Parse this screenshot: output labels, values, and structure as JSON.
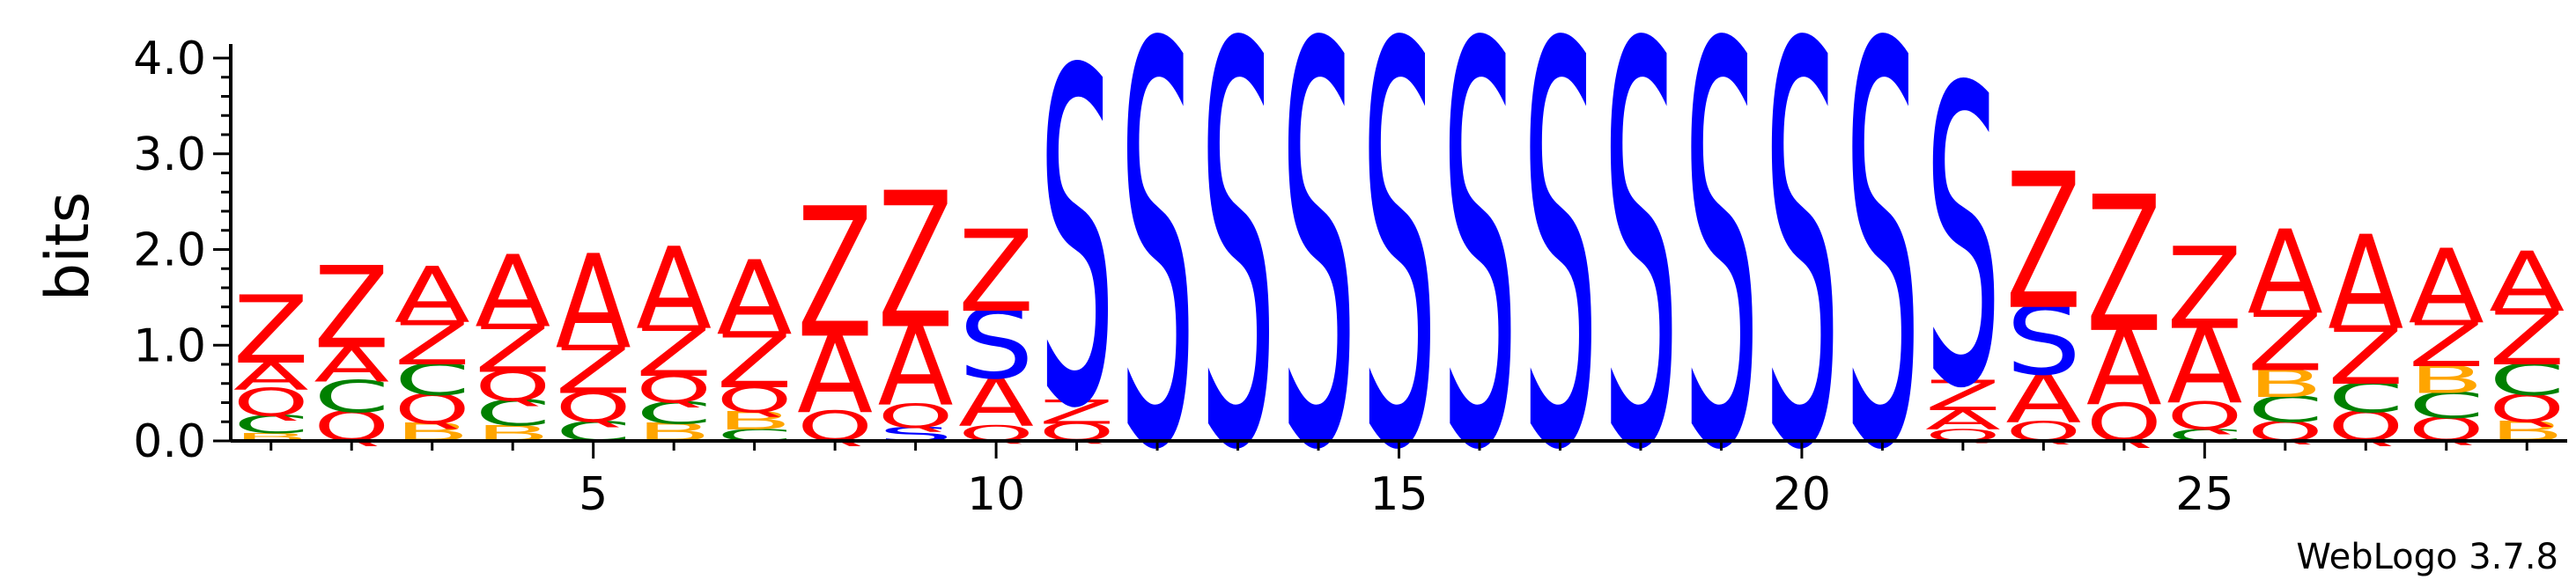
{
  "chart_data": {
    "type": "sequence-logo",
    "ylabel": "bits",
    "ylim": [
      0,
      4.0
    ],
    "yticks": [
      "0.0",
      "1.0",
      "2.0",
      "3.0",
      "4.0"
    ],
    "xlim": [
      1,
      29
    ],
    "xticks": [
      "5",
      "10",
      "15",
      "20",
      "25"
    ],
    "credit": "WebLogo 3.7.8",
    "colors": {
      "A": "#ff0000",
      "Z": "#ff0000",
      "Q": "#ff0000",
      "S": "#0000ff",
      "C": "#008000",
      "B": "#ffa500"
    },
    "positions": [
      {
        "pos": 1,
        "stack": [
          [
            "B",
            0.08
          ],
          [
            "C",
            0.18
          ],
          [
            "Q",
            0.28
          ],
          [
            "A",
            0.28
          ],
          [
            "Z",
            0.68
          ]
        ]
      },
      {
        "pos": 2,
        "stack": [
          [
            "Q",
            0.3
          ],
          [
            "C",
            0.32
          ],
          [
            "A",
            0.36
          ],
          [
            "Z",
            0.82
          ]
        ]
      },
      {
        "pos": 3,
        "stack": [
          [
            "B",
            0.18
          ],
          [
            "Q",
            0.3
          ],
          [
            "C",
            0.32
          ],
          [
            "Z",
            0.44
          ],
          [
            "A",
            0.56
          ]
        ]
      },
      {
        "pos": 4,
        "stack": [
          [
            "B",
            0.16
          ],
          [
            "C",
            0.26
          ],
          [
            "Q",
            0.3
          ],
          [
            "Z",
            0.48
          ],
          [
            "A",
            0.72
          ]
        ]
      },
      {
        "pos": 5,
        "stack": [
          [
            "C",
            0.2
          ],
          [
            "Q",
            0.3
          ],
          [
            "Z",
            0.48
          ],
          [
            "A",
            0.94
          ]
        ]
      },
      {
        "pos": 6,
        "stack": [
          [
            "B",
            0.18
          ],
          [
            "C",
            0.22
          ],
          [
            "Q",
            0.28
          ],
          [
            "Z",
            0.5
          ],
          [
            "A",
            0.82
          ]
        ]
      },
      {
        "pos": 7,
        "stack": [
          [
            "C",
            0.12
          ],
          [
            "B",
            0.18
          ],
          [
            "Q",
            0.26
          ],
          [
            "Z",
            0.56
          ],
          [
            "A",
            0.74
          ]
        ]
      },
      {
        "pos": 8,
        "stack": [
          [
            "Q",
            0.3
          ],
          [
            "A",
            0.8
          ],
          [
            "Z",
            1.3
          ]
        ]
      },
      {
        "pos": 9,
        "stack": [
          [
            "S",
            0.14
          ],
          [
            "Q",
            0.24
          ],
          [
            "A",
            0.82
          ],
          [
            "Z",
            1.36
          ]
        ]
      },
      {
        "pos": 10,
        "stack": [
          [
            "Q",
            0.16
          ],
          [
            "A",
            0.5
          ],
          [
            "S",
            0.7
          ],
          [
            "Z",
            0.82
          ]
        ]
      },
      {
        "pos": 11,
        "stack": [
          [
            "Q",
            0.18
          ],
          [
            "Z",
            0.24
          ],
          [
            "S",
            3.34
          ]
        ]
      },
      {
        "pos": 12,
        "stack": [
          [
            "S",
            4.0
          ]
        ]
      },
      {
        "pos": 13,
        "stack": [
          [
            "S",
            4.0
          ]
        ]
      },
      {
        "pos": 14,
        "stack": [
          [
            "S",
            4.0
          ]
        ]
      },
      {
        "pos": 15,
        "stack": [
          [
            "S",
            4.0
          ]
        ]
      },
      {
        "pos": 16,
        "stack": [
          [
            "S",
            4.0
          ]
        ]
      },
      {
        "pos": 17,
        "stack": [
          [
            "S",
            4.0
          ]
        ]
      },
      {
        "pos": 18,
        "stack": [
          [
            "S",
            4.0
          ]
        ]
      },
      {
        "pos": 19,
        "stack": [
          [
            "S",
            4.0
          ]
        ]
      },
      {
        "pos": 20,
        "stack": [
          [
            "S",
            4.0
          ]
        ]
      },
      {
        "pos": 21,
        "stack": [
          [
            "S",
            4.0
          ]
        ]
      },
      {
        "pos": 22,
        "stack": [
          [
            "Q",
            0.12
          ],
          [
            "A",
            0.2
          ],
          [
            "Z",
            0.3
          ],
          [
            "S",
            2.98
          ]
        ]
      },
      {
        "pos": 23,
        "stack": [
          [
            "Q",
            0.2
          ],
          [
            "A",
            0.5
          ],
          [
            "S",
            0.7
          ],
          [
            "Z",
            1.36
          ]
        ]
      },
      {
        "pos": 24,
        "stack": [
          [
            "Q",
            0.38
          ],
          [
            "A",
            0.78
          ],
          [
            "Z",
            1.36
          ]
        ]
      },
      {
        "pos": 25,
        "stack": [
          [
            "C",
            0.12
          ],
          [
            "Q",
            0.28
          ],
          [
            "A",
            0.78
          ],
          [
            "Z",
            0.82
          ]
        ]
      },
      {
        "pos": 26,
        "stack": [
          [
            "Q",
            0.2
          ],
          [
            "C",
            0.26
          ],
          [
            "B",
            0.28
          ],
          [
            "Z",
            0.6
          ],
          [
            "A",
            0.84
          ]
        ]
      },
      {
        "pos": 27,
        "stack": [
          [
            "Q",
            0.3
          ],
          [
            "C",
            0.3
          ],
          [
            "Z",
            0.58
          ],
          [
            "A",
            0.94
          ]
        ]
      },
      {
        "pos": 28,
        "stack": [
          [
            "Q",
            0.24
          ],
          [
            "C",
            0.26
          ],
          [
            "B",
            0.28
          ],
          [
            "Z",
            0.46
          ],
          [
            "A",
            0.74
          ]
        ]
      },
      {
        "pos": 29,
        "stack": [
          [
            "B",
            0.2
          ],
          [
            "Q",
            0.28
          ],
          [
            "C",
            0.32
          ],
          [
            "Z",
            0.56
          ],
          [
            "A",
            0.6
          ]
        ]
      }
    ]
  }
}
